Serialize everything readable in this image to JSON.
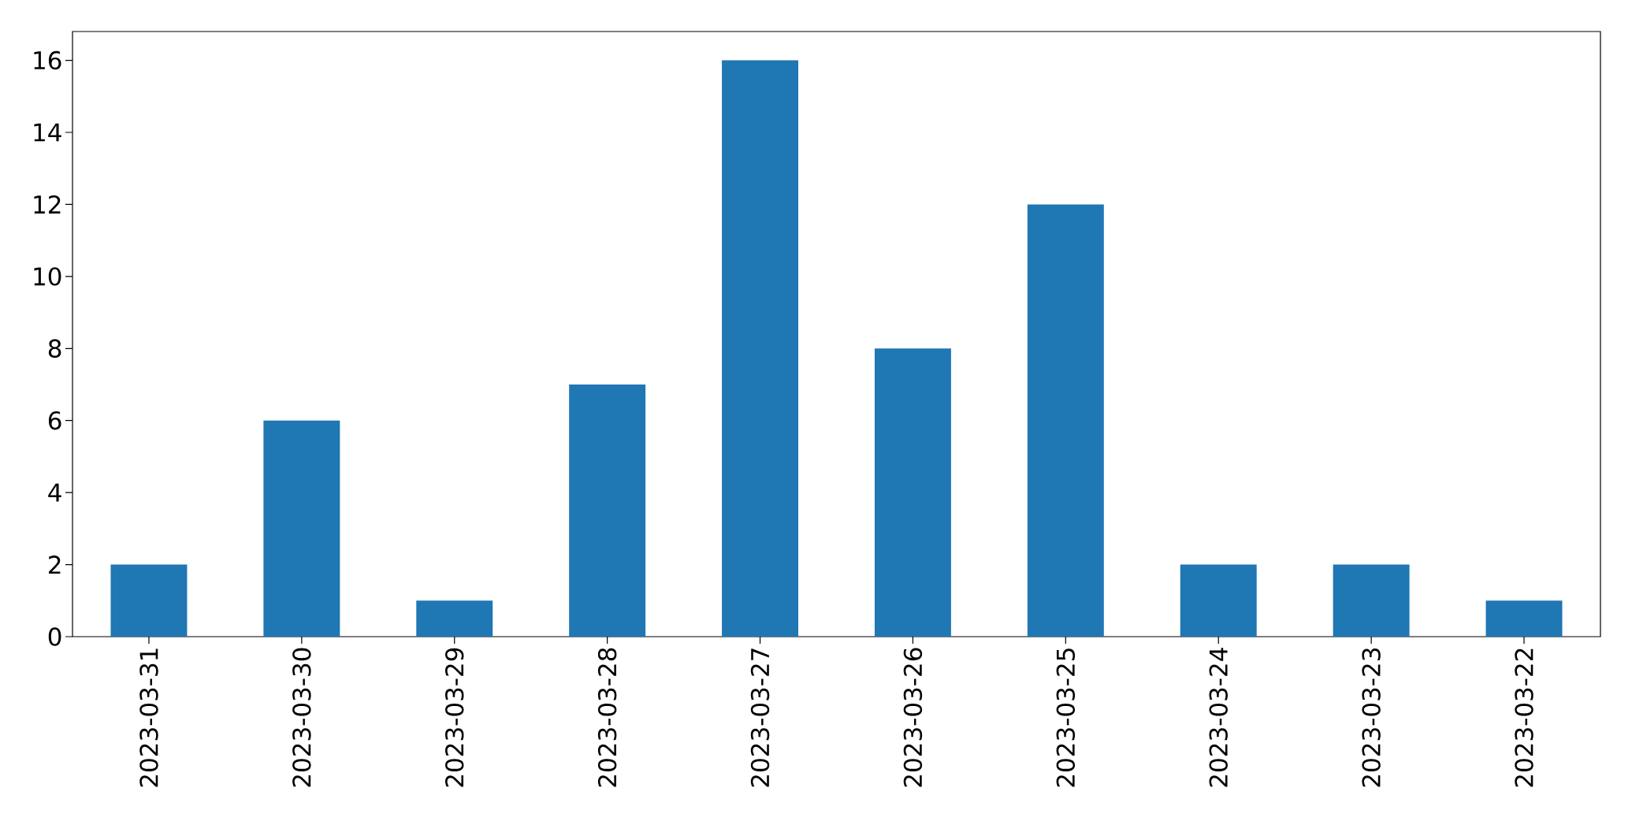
{
  "chart_data": {
    "type": "bar",
    "categories": [
      "2023-03-31",
      "2023-03-30",
      "2023-03-29",
      "2023-03-28",
      "2023-03-27",
      "2023-03-26",
      "2023-03-25",
      "2023-03-24",
      "2023-03-23",
      "2023-03-22"
    ],
    "values": [
      2,
      6,
      1,
      7,
      16,
      8,
      12,
      2,
      2,
      1
    ],
    "color": "#1f77b4",
    "ylim": [
      0,
      16.8
    ],
    "yticks": [
      0,
      2,
      4,
      6,
      8,
      10,
      12,
      14,
      16
    ],
    "grid": false
  }
}
